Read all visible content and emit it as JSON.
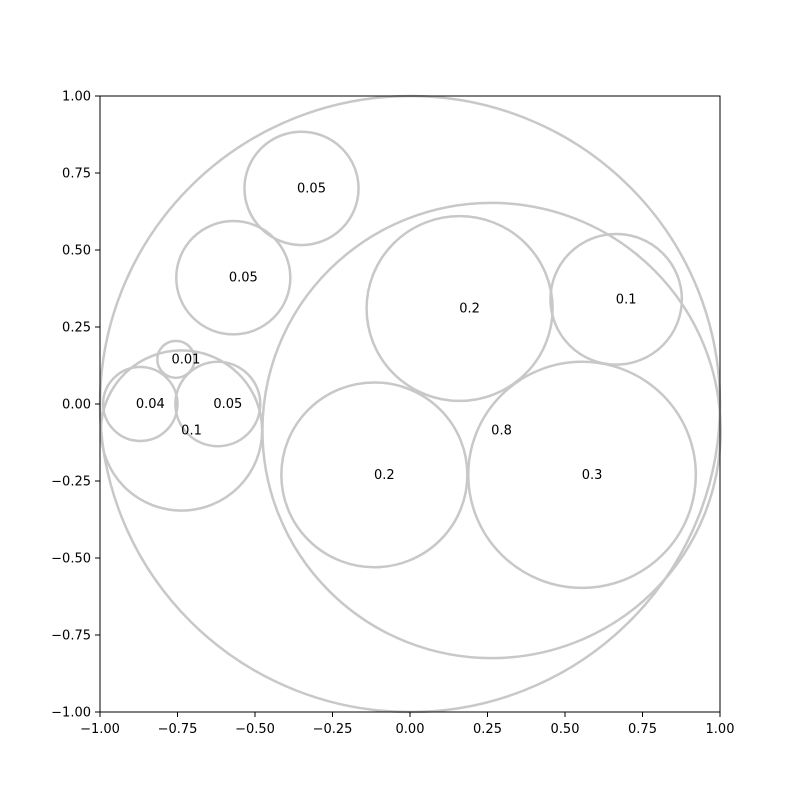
{
  "chart_data": {
    "type": "circle-packing",
    "xlim": [
      -1.0,
      1.0
    ],
    "ylim": [
      -1.0,
      1.0
    ],
    "grid": false,
    "x_tick_values": [
      -1.0,
      -0.75,
      -0.5,
      -0.25,
      0.0,
      0.25,
      0.5,
      0.75,
      1.0
    ],
    "x_tick_labels": [
      "−1.00",
      "−0.75",
      "−0.50",
      "−0.25",
      "0.00",
      "0.25",
      "0.50",
      "0.75",
      "1.00"
    ],
    "y_tick_values": [
      1.0,
      0.75,
      0.5,
      0.25,
      0.0,
      -0.25,
      -0.5,
      -0.75,
      -1.0
    ],
    "y_tick_labels": [
      "1.00",
      "0.75",
      "0.50",
      "0.25",
      "0.00",
      "−0.25",
      "−0.50",
      "−0.75",
      "−1.00"
    ],
    "edge_color": "#c8c8c8",
    "circles": [
      {
        "x": 0.0,
        "y": 0.0,
        "r": 1.0,
        "label": ""
      },
      {
        "x": 0.263,
        "y": -0.086,
        "r": 0.739,
        "label": "0.8"
      },
      {
        "x": -0.737,
        "y": -0.086,
        "r": 0.26,
        "label": "0.1"
      },
      {
        "x": -0.35,
        "y": 0.7,
        "r": 0.184,
        "label": "0.05"
      },
      {
        "x": -0.57,
        "y": 0.41,
        "r": 0.184,
        "label": "0.05"
      },
      {
        "x": 0.16,
        "y": 0.31,
        "r": 0.3,
        "label": "0.2"
      },
      {
        "x": 0.665,
        "y": 0.34,
        "r": 0.212,
        "label": "0.1"
      },
      {
        "x": -0.115,
        "y": -0.23,
        "r": 0.3,
        "label": "0.2"
      },
      {
        "x": 0.555,
        "y": -0.23,
        "r": 0.367,
        "label": "0.3"
      },
      {
        "x": -0.87,
        "y": -0.0,
        "r": 0.12,
        "label": "0.04"
      },
      {
        "x": -0.755,
        "y": 0.145,
        "r": 0.06,
        "label": "0.01"
      },
      {
        "x": -0.62,
        "y": -0.0,
        "r": 0.137,
        "label": "0.05"
      }
    ]
  }
}
